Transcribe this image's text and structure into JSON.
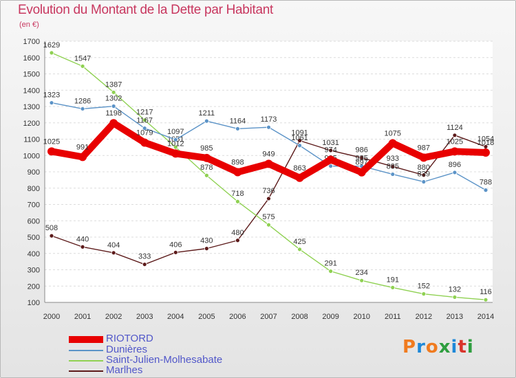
{
  "header": {
    "title": "Evolution du Montant de la Dette par Habitant",
    "unit": "(en €)"
  },
  "logo": {
    "text": "Proxiti",
    "colors": [
      "#f07b1f",
      "#1e88d8",
      "#f07b1f",
      "#2e9e3f",
      "#1e88d8",
      "#d9342b",
      "#2e9e3f"
    ]
  },
  "chart_data": {
    "type": "line",
    "title": "Evolution du Montant de la Dette par Habitant",
    "ylabel": "(en €)",
    "xlabel": "",
    "x": [
      "2000",
      "2001",
      "2002",
      "2003",
      "2004",
      "2005",
      "2006",
      "2007",
      "2008",
      "2009",
      "2010",
      "2011",
      "2012",
      "2013",
      "2014"
    ],
    "ylim": [
      100,
      1700
    ],
    "yticks": [
      100,
      200,
      300,
      400,
      500,
      600,
      700,
      800,
      900,
      1000,
      1100,
      1200,
      1300,
      1400,
      1500,
      1600,
      1700
    ],
    "grid": "horizontal",
    "legend_position": "bottom-left",
    "series": [
      {
        "name": "Marlhes",
        "color": "#5c1a1a",
        "values": [
          508,
          440,
          404,
          333,
          406,
          430,
          480,
          736,
          1091,
          1031,
          986,
          933,
          880,
          1124,
          1054
        ]
      },
      {
        "name": "Saint-Julien-Molhesabate",
        "color": "#8fd152",
        "values": [
          1629,
          1547,
          1387,
          1217,
          1051,
          878,
          718,
          575,
          425,
          291,
          234,
          191,
          152,
          132,
          116
        ]
      },
      {
        "name": "Dunières",
        "color": "#5b93c7",
        "values": [
          1323,
          1286,
          1302,
          1167,
          1097,
          1211,
          1164,
          1173,
          1061,
          935,
          935,
          885,
          839,
          896,
          788
        ]
      },
      {
        "name": "RIOTORD",
        "color": "#e80000",
        "values": [
          1025,
          991,
          1198,
          1079,
          1012,
          985,
          898,
          949,
          863,
          974,
          897,
          1075,
          987,
          1025,
          1018
        ]
      }
    ],
    "legend_order": [
      "RIOTORD",
      "Dunières",
      "Saint-Julien-Molhesabate",
      "Marlhes"
    ]
  }
}
